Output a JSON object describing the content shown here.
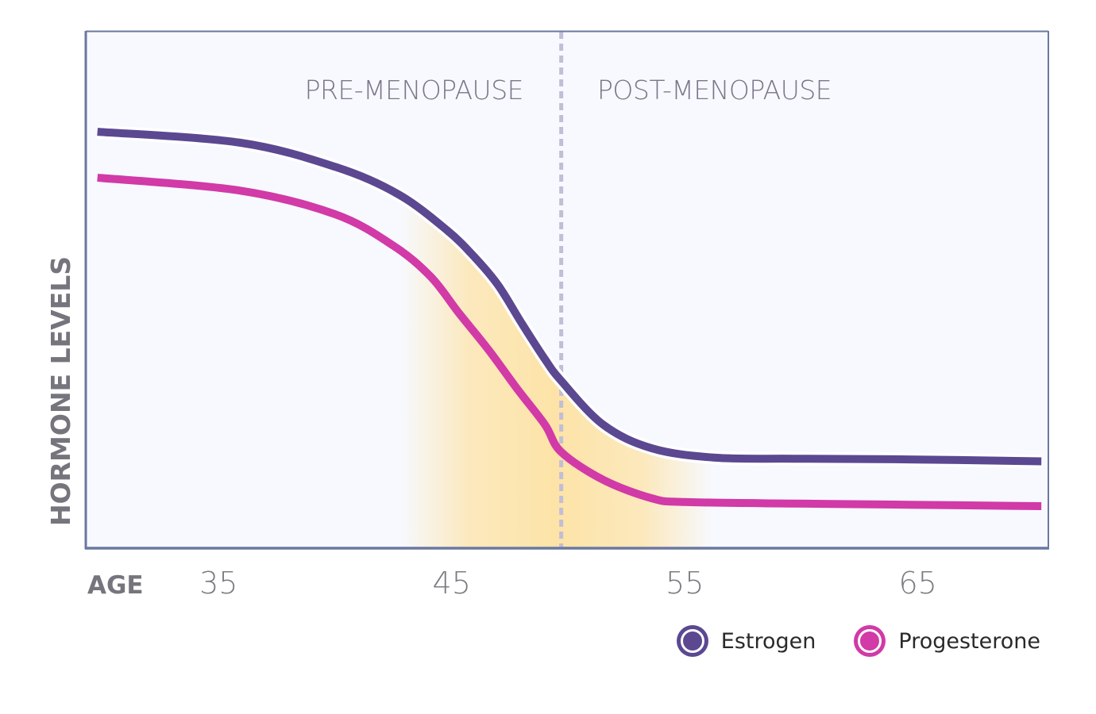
{
  "chart_data": {
    "type": "line",
    "title": "",
    "xlabel": "AGE",
    "ylabel": "HORMONE LEVELS",
    "xlim": [
      29.3,
      70.6
    ],
    "ylim": [
      0,
      100
    ],
    "x_ticks": [
      35,
      45,
      55,
      65
    ],
    "y_ticks": [],
    "grid": false,
    "legend_position": "bottom-right",
    "phases": [
      {
        "label": "PRE-MENOPAUSE",
        "x_center": 43
      },
      {
        "label": "POST-MENOPAUSE",
        "x_center": 56.8
      }
    ],
    "menopause_divider_x": 49.7,
    "highlight_band": {
      "x_start": 42.8,
      "x_end": 56.2,
      "color": "#fde3a7"
    },
    "series": [
      {
        "name": "Estrogen",
        "color": "#5b4891",
        "points": [
          [
            29.8,
            80.6
          ],
          [
            35.9,
            78.5
          ],
          [
            40.0,
            73.8
          ],
          [
            42.7,
            68.5
          ],
          [
            44.8,
            61.5
          ],
          [
            46.0,
            56.2
          ],
          [
            47.0,
            50.8
          ],
          [
            48.0,
            43.5
          ],
          [
            49.0,
            36.5
          ],
          [
            49.7,
            32.3
          ],
          [
            51.5,
            23.8
          ],
          [
            53.6,
            19.2
          ],
          [
            56.3,
            17.4
          ],
          [
            59.7,
            17.2
          ],
          [
            64.0,
            17.1
          ],
          [
            70.3,
            16.7
          ]
        ]
      },
      {
        "name": "Progesterone",
        "color": "#d13aa7",
        "points": [
          [
            29.8,
            71.7
          ],
          [
            35.9,
            69.2
          ],
          [
            40.0,
            64.6
          ],
          [
            42.5,
            58.5
          ],
          [
            44.1,
            52.5
          ],
          [
            45.3,
            45.5
          ],
          [
            46.6,
            38.2
          ],
          [
            47.8,
            30.8
          ],
          [
            49.0,
            23.8
          ],
          [
            49.7,
            18.5
          ],
          [
            51.5,
            13.1
          ],
          [
            53.6,
            9.5
          ],
          [
            55.0,
            8.8
          ],
          [
            59.7,
            8.5
          ],
          [
            64.0,
            8.3
          ],
          [
            70.3,
            8.0
          ]
        ]
      }
    ]
  },
  "legend": {
    "items": [
      {
        "label": "Estrogen",
        "color": "#5b4891"
      },
      {
        "label": "Progesterone",
        "color": "#d13aa7"
      }
    ]
  },
  "colors": {
    "plot_background": "#f7f9fe",
    "axis": "#6b78a0",
    "divider": "#c2bed6"
  }
}
